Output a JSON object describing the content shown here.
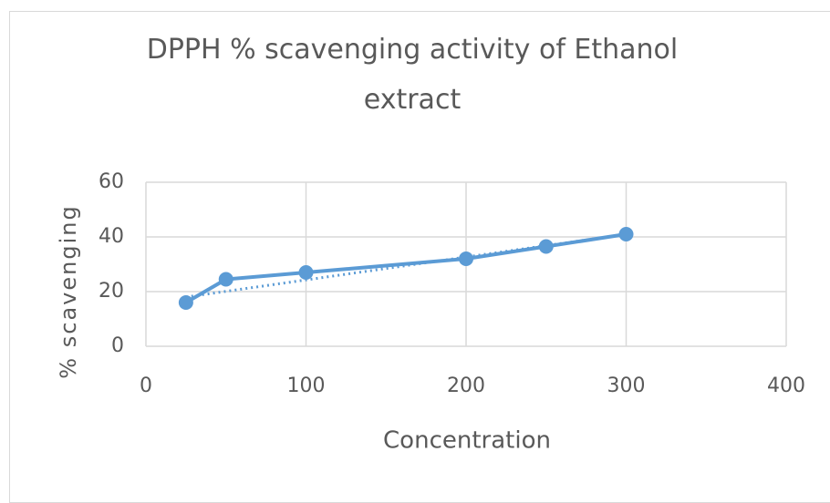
{
  "chart_data": {
    "type": "line",
    "title": "DPPH % scavenging activity of Ethanol extract",
    "x_label": "Concentration",
    "y_label": "% scavenging",
    "x": [
      25,
      50,
      100,
      200,
      250,
      300
    ],
    "values": [
      16,
      24.5,
      27,
      32,
      36.5,
      41
    ],
    "color": "#5b9bd5",
    "trendline": {
      "x": [
        25,
        300
      ],
      "values": [
        18,
        41
      ],
      "style": "dotted"
    },
    "xlim": [
      0,
      400
    ],
    "xticks": [
      0,
      100,
      200,
      300,
      400
    ],
    "ylim": [
      0,
      60
    ],
    "yticks": [
      0,
      20,
      40,
      60
    ],
    "grid": true
  }
}
